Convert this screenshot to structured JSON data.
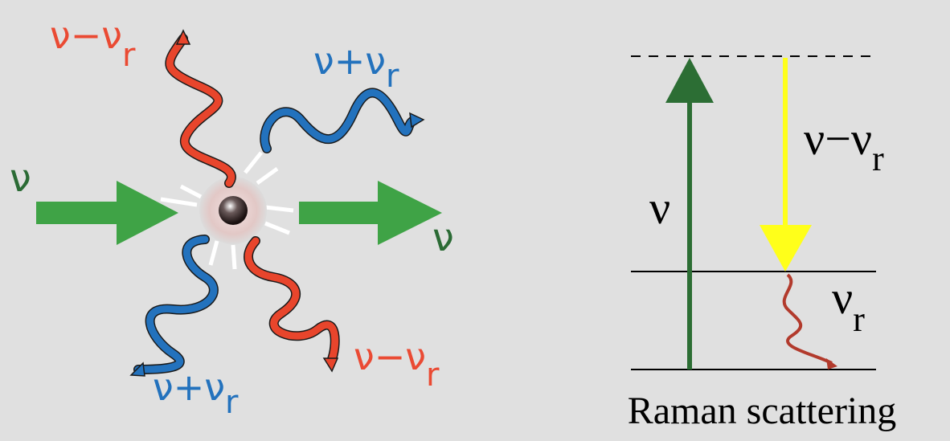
{
  "scattering": {
    "top_left_label": {
      "text": "ν−ν",
      "subscript": "r"
    },
    "top_right_label": {
      "text": "ν+ν",
      "subscript": "r"
    },
    "incoming_label": "ν",
    "outgoing_label": "ν",
    "bottom_left_label": {
      "text": "ν+ν",
      "subscript": "r"
    },
    "bottom_right_label": {
      "text": "ν−ν",
      "subscript": "r"
    }
  },
  "energy_diagram": {
    "up_label": "ν",
    "down_label": {
      "text": "ν−ν",
      "subscript": "r"
    },
    "vibration_label": {
      "text": "ν",
      "subscript": "r"
    },
    "caption": "Raman scattering"
  }
}
